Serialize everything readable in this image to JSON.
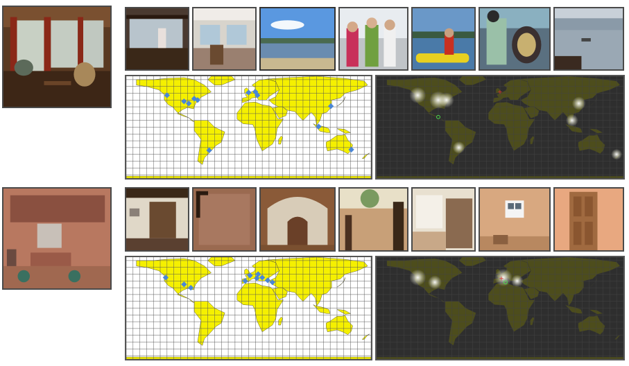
{
  "rows": [
    {
      "query_scene": "cruise-ship-lounge",
      "neighbor_scenes": [
        "ship-deck-bar",
        "ship-interior-deck",
        "lake-shore",
        "people-on-dock",
        "kayak-on-lake",
        "person-with-drum",
        "lake-view-with-boat"
      ],
      "scatter_points": [
        {
          "lon": -120,
          "lat": 47
        },
        {
          "lon": -95,
          "lat": 38
        },
        {
          "lon": -80,
          "lat": 42
        },
        {
          "lon": -75,
          "lat": 40
        },
        {
          "lon": -88,
          "lat": 35
        },
        {
          "lon": -58,
          "lat": -34
        },
        {
          "lon": 0,
          "lat": 51
        },
        {
          "lon": 10,
          "lat": 52
        },
        {
          "lon": 13,
          "lat": 47
        },
        {
          "lon": 121,
          "lat": 31
        },
        {
          "lon": 103,
          "lat": 1
        },
        {
          "lon": 151,
          "lat": -33
        }
      ],
      "density_peaks": [
        {
          "lon": -120,
          "lat": 47,
          "strength": 0.9
        },
        {
          "lon": -90,
          "lat": 40,
          "strength": 1
        },
        {
          "lon": -78,
          "lat": 40,
          "strength": 0.8
        },
        {
          "lon": 115,
          "lat": 35,
          "strength": 0.7
        },
        {
          "lon": 105,
          "lat": 10,
          "strength": 0.6
        },
        {
          "lon": -60,
          "lat": -30,
          "strength": 0.6
        },
        {
          "lon": 170,
          "lat": -40,
          "strength": 0.5
        }
      ],
      "true_location": {
        "lon": -90,
        "lat": 15
      },
      "predicted_location": {
        "lon": 0,
        "lat": 52
      }
    },
    {
      "query_scene": "ornate-interior-wall",
      "neighbor_scenes": [
        "cottage-interior",
        "carved-door-panel",
        "stone-hall-arch",
        "ruined-interior",
        "damaged-room",
        "whitewashed-room",
        "wooden-door"
      ],
      "scatter_points": [
        {
          "lon": -122,
          "lat": 45
        },
        {
          "lon": -95,
          "lat": 35
        },
        {
          "lon": -85,
          "lat": 30
        },
        {
          "lon": -5,
          "lat": 40
        },
        {
          "lon": 2,
          "lat": 48
        },
        {
          "lon": 12,
          "lat": 44
        },
        {
          "lon": 14,
          "lat": 50
        },
        {
          "lon": 20,
          "lat": 45
        },
        {
          "lon": 28,
          "lat": 41
        },
        {
          "lon": 35,
          "lat": 38
        }
      ],
      "density_peaks": [
        {
          "lon": -120,
          "lat": 45,
          "strength": 0.9
        },
        {
          "lon": -95,
          "lat": 38,
          "strength": 0.7
        },
        {
          "lon": 5,
          "lat": 45,
          "strength": 1
        },
        {
          "lon": 25,
          "lat": 40,
          "strength": 0.6
        }
      ],
      "true_location": {
        "lon": 8,
        "lat": 38
      },
      "predicted_location": {
        "lon": 2,
        "lat": 44
      }
    }
  ],
  "colors": {
    "land": "#f5f000",
    "ocean": "#ffffff",
    "scatter": "#4a86d6",
    "density_bg": "#2e2e2e",
    "density_land": "#4d4d1c",
    "true_marker": "#e03030",
    "predicted_marker": "#4cdc4c"
  }
}
